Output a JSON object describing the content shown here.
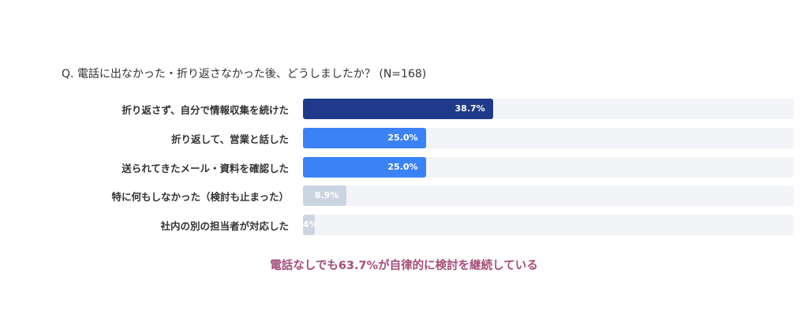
{
  "chart_data": {
    "type": "bar",
    "orientation": "horizontal",
    "title": "Q. 電話に出なかった・折り返さなかった後、どうしましたか？ (N=168)",
    "categories": [
      "折り返さず、自分で情報収集を続けた",
      "折り返して、営業と話した",
      "送られてきたメール・資料を確認した",
      "特に何もしなかった（検討も止まった）",
      "社内の別の担当者が対応した"
    ],
    "values": [
      38.7,
      25.0,
      25.0,
      8.9,
      2.4
    ],
    "value_labels": [
      "38.7%",
      "25.0%",
      "25.0%",
      "8.9%",
      "2.4%"
    ],
    "colors": [
      "#1f3a8a",
      "#3b82f6",
      "#3b82f6",
      "#cbd5e1",
      "#cbd5e1"
    ],
    "track_color": "#f2f4f8",
    "xlim": [
      0,
      100
    ],
    "grid": false,
    "legend": "none",
    "annotation": "電話なしでも63.7%が自律的に検討を継続している",
    "annotation_color": "#a64d79"
  }
}
